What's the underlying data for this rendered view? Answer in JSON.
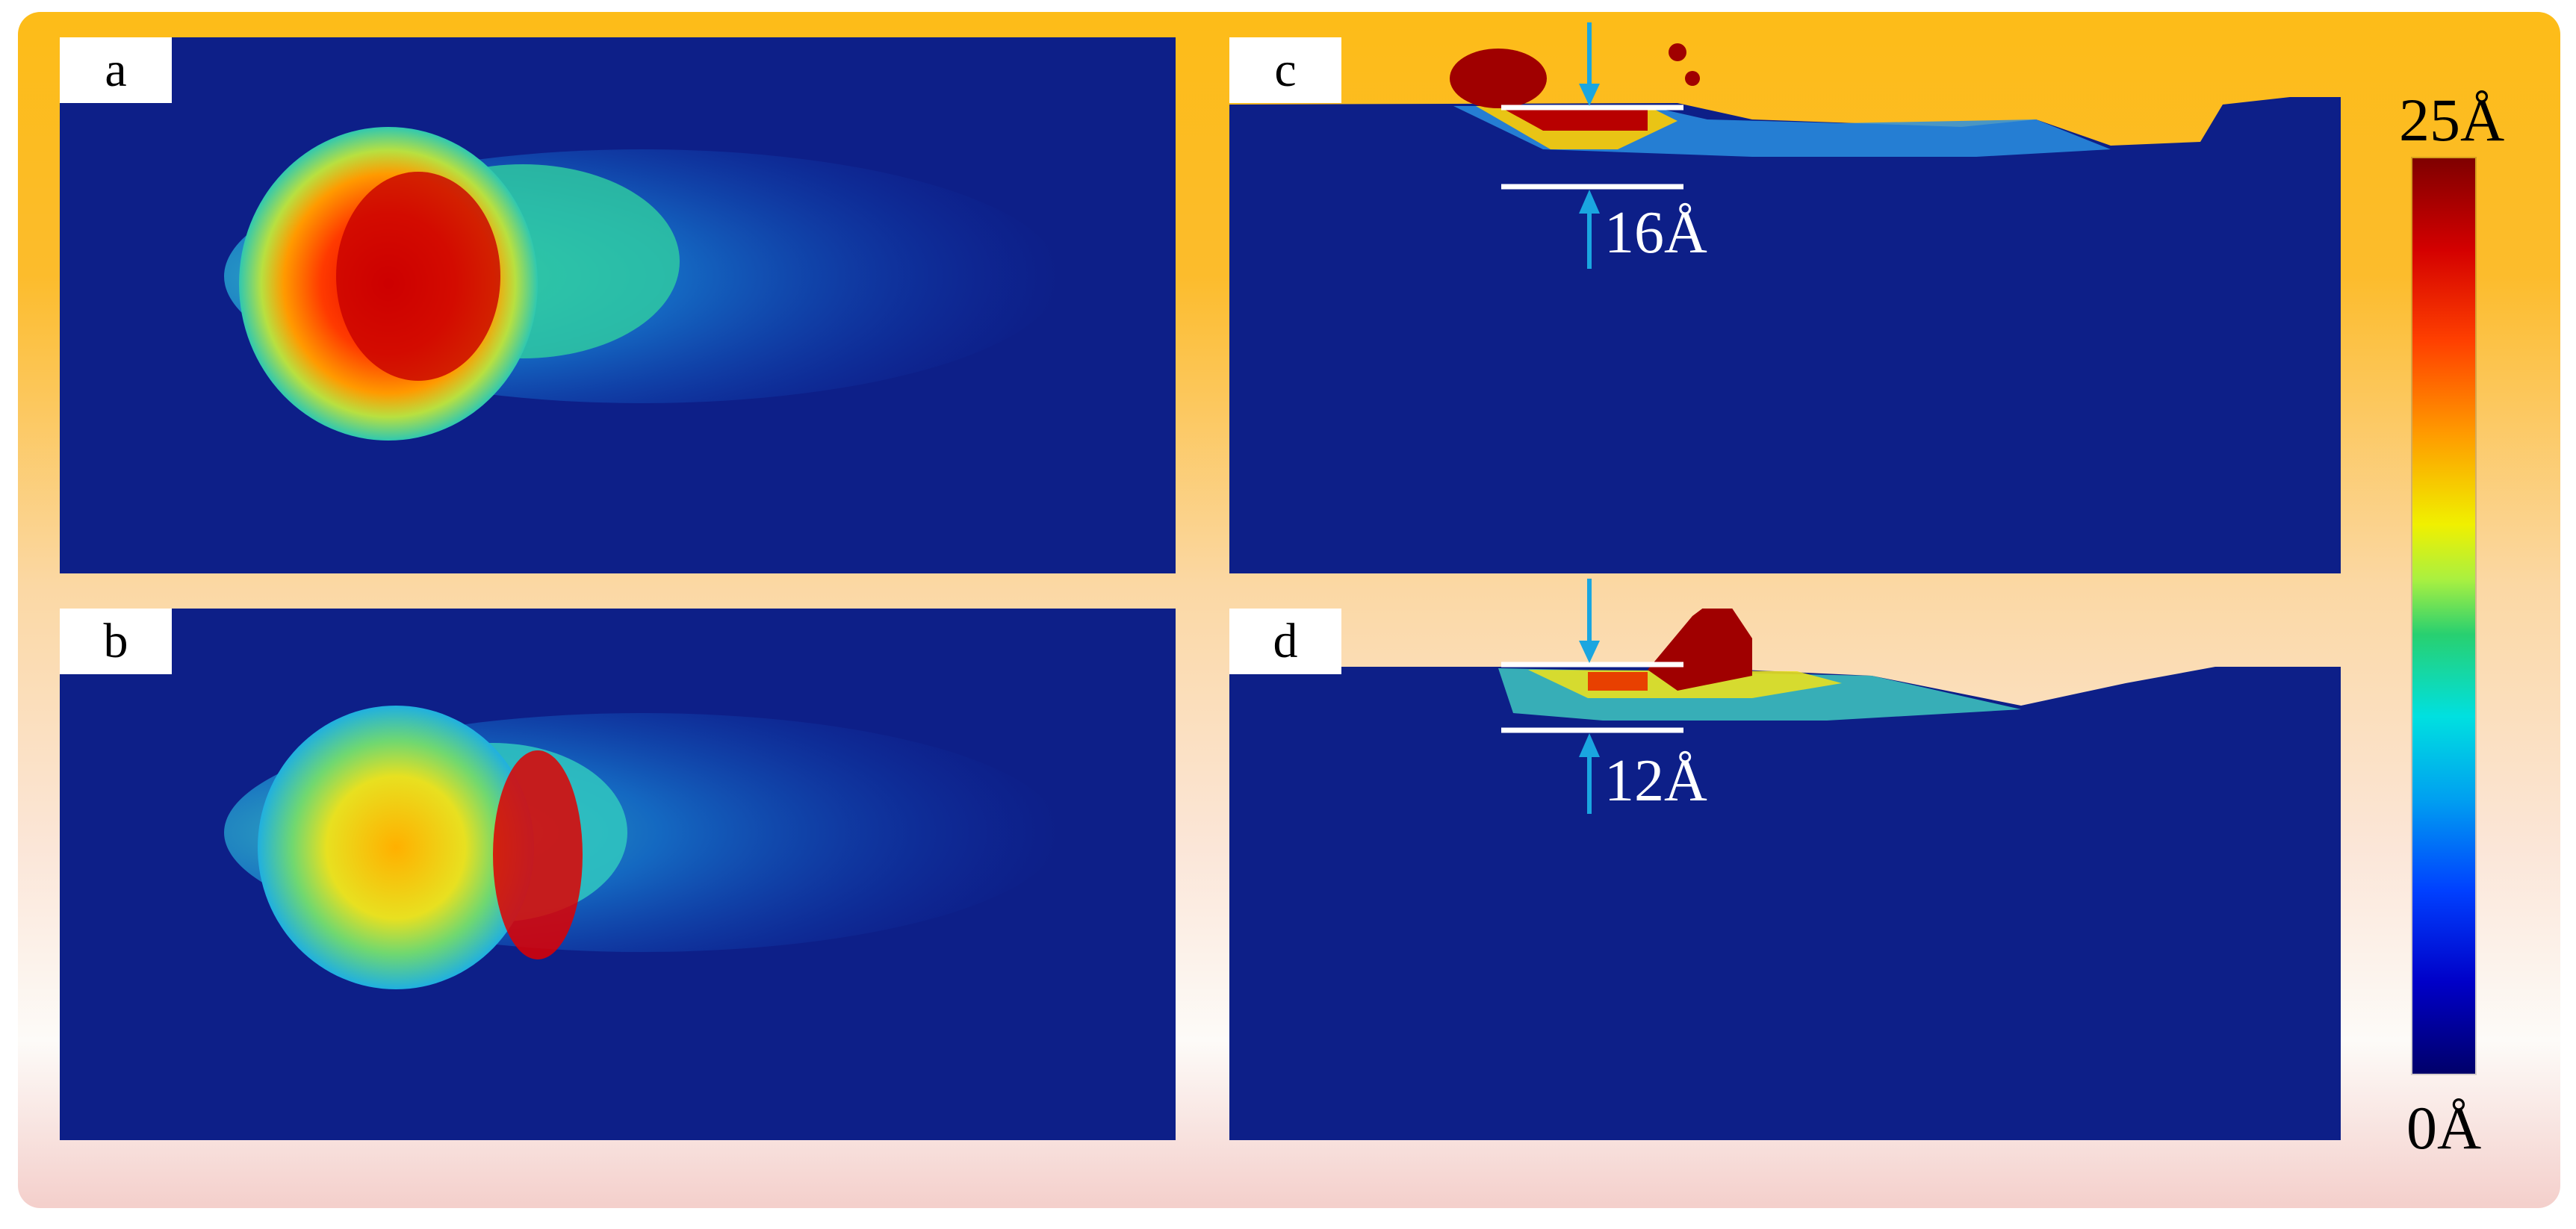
{
  "panels": {
    "a": {
      "label": "a"
    },
    "b": {
      "label": "b"
    },
    "c": {
      "label": "c",
      "depth": "16Å"
    },
    "d": {
      "label": "d",
      "depth": "12Å"
    }
  },
  "colorbar": {
    "max_label": "25Å",
    "min_label": "0Å",
    "colors": [
      "#7f0000",
      "#d40000",
      "#ff4000",
      "#ff9a00",
      "#f0f000",
      "#28d070",
      "#00e0e0",
      "#00a0f0",
      "#0040ff",
      "#00006a"
    ]
  },
  "colors": {
    "substrate": "#0d1f88",
    "arrow": "#1aa6e0",
    "marker_line": "#ffffff"
  }
}
